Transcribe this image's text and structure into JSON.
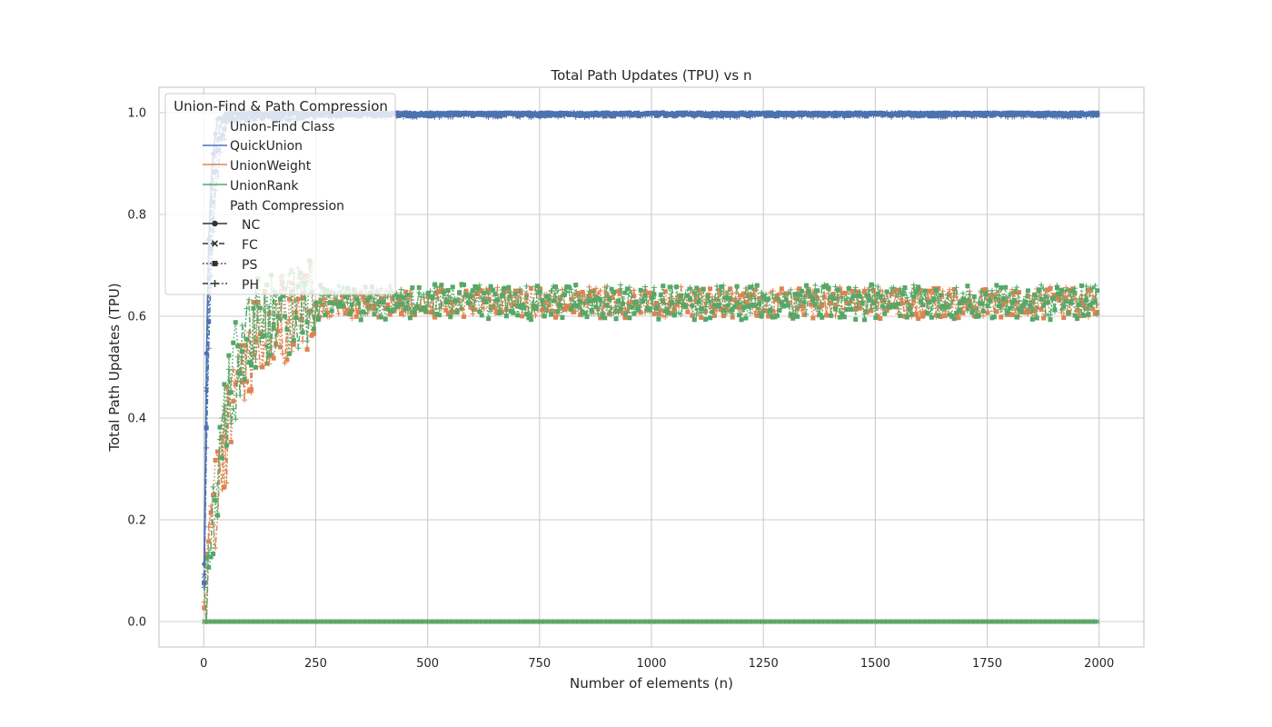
{
  "chart_data": {
    "type": "line",
    "title": "Total Path Updates (TPU) vs n",
    "xlabel": "Number of elements (n)",
    "ylabel": "Total Path Updates (TPU)",
    "xlim": [
      -100,
      2100
    ],
    "ylim": [
      -0.05,
      1.05
    ],
    "xticks": [
      0,
      250,
      500,
      750,
      1000,
      1250,
      1500,
      1750,
      2000
    ],
    "yticks": [
      0.0,
      0.2,
      0.4,
      0.6,
      0.8,
      1.0
    ],
    "xtick_labels": [
      "0",
      "250",
      "500",
      "750",
      "1000",
      "1250",
      "1500",
      "1750",
      "2000"
    ],
    "ytick_labels": [
      "0.0",
      "0.2",
      "0.4",
      "0.6",
      "0.8",
      "1.0"
    ],
    "grid": true,
    "legend": {
      "placement": "upper-left",
      "title": "Union-Find & Path Compression",
      "class_header": "Union-Find Class",
      "classes": [
        {
          "name": "QuickUnion",
          "color": "#4c72b0"
        },
        {
          "name": "UnionWeight",
          "color": "#dd8452"
        },
        {
          "name": "UnionRank",
          "color": "#55a868"
        }
      ],
      "compression_header": "Path Compression",
      "compressions": [
        {
          "name": "NC",
          "dash": "solid",
          "marker": "circle"
        },
        {
          "name": "FC",
          "dash": "dashed",
          "marker": "x"
        },
        {
          "name": "PS",
          "dash": "dotted",
          "marker": "square"
        },
        {
          "name": "PH",
          "dash": "dashdot",
          "marker": "plus"
        }
      ]
    },
    "x_sampling": {
      "start": 1,
      "end": 1996,
      "step": 5
    },
    "series": [
      {
        "name": "QuickUnion NC",
        "class": "QuickUnion",
        "compression": "NC",
        "model": "saturate",
        "plateau": 1.0,
        "rate": 8,
        "noise": 0.003
      },
      {
        "name": "QuickUnion FC",
        "class": "QuickUnion",
        "compression": "FC",
        "model": "saturate",
        "plateau": 0.998,
        "rate": 10,
        "noise": 0.004
      },
      {
        "name": "QuickUnion PS",
        "class": "QuickUnion",
        "compression": "PS",
        "model": "saturate",
        "plateau": 0.997,
        "rate": 12,
        "noise": 0.004
      },
      {
        "name": "QuickUnion PH",
        "class": "QuickUnion",
        "compression": "PH",
        "model": "saturate",
        "plateau": 0.996,
        "rate": 14,
        "noise": 0.005
      },
      {
        "name": "UnionWeight FC",
        "class": "UnionWeight",
        "compression": "FC",
        "model": "zero",
        "plateau": 0.0,
        "rate": 1,
        "noise": 0.0
      },
      {
        "name": "UnionWeight PS",
        "class": "UnionWeight",
        "compression": "PS",
        "model": "saturate",
        "plateau": 0.625,
        "rate": 55,
        "noise": 0.03
      },
      {
        "name": "UnionWeight PH",
        "class": "UnionWeight",
        "compression": "PH",
        "model": "saturate",
        "plateau": 0.628,
        "rate": 60,
        "noise": 0.03
      },
      {
        "name": "UnionRank FC",
        "class": "UnionRank",
        "compression": "FC",
        "model": "zero",
        "plateau": 0.0,
        "rate": 1,
        "noise": 0.0
      },
      {
        "name": "UnionRank PS",
        "class": "UnionRank",
        "compression": "PS",
        "model": "saturate",
        "plateau": 0.628,
        "rate": 45,
        "noise": 0.035
      },
      {
        "name": "UnionRank PH",
        "class": "UnionRank",
        "compression": "PH",
        "model": "saturate",
        "plateau": 0.632,
        "rate": 50,
        "noise": 0.03
      }
    ]
  }
}
